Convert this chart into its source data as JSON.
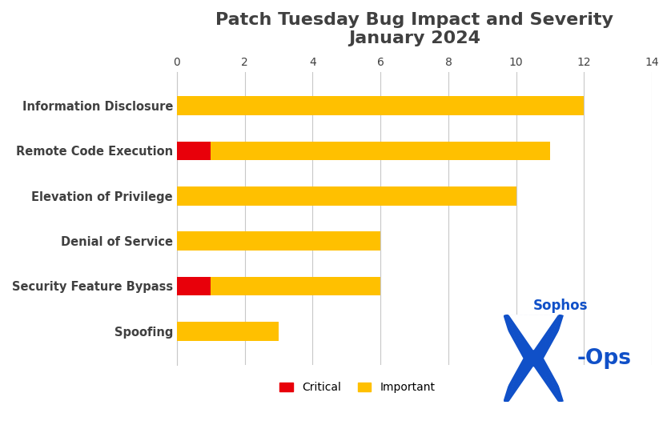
{
  "title_line1": "Patch Tuesday Bug Impact and Severity",
  "title_line2": "January 2024",
  "categories": [
    "Information Disclosure",
    "Remote Code Execution",
    "Elevation of Privilege",
    "Denial of Service",
    "Security Feature Bypass",
    "Spoofing"
  ],
  "critical_values": [
    0,
    1,
    0,
    0,
    1,
    0
  ],
  "important_values": [
    12,
    10,
    10,
    6,
    5,
    3
  ],
  "critical_color": "#E8000A",
  "important_color": "#FFC000",
  "xlim": [
    0,
    14
  ],
  "xticks": [
    0,
    2,
    4,
    6,
    8,
    10,
    12,
    14
  ],
  "background_color": "#FFFFFF",
  "title_color": "#404040",
  "label_color": "#404040",
  "grid_color": "#C8C8C8",
  "bar_height": 0.42,
  "title_fontsize": 16,
  "label_fontsize": 10.5,
  "tick_fontsize": 10,
  "legend_fontsize": 10,
  "sophos_color": "#1050C8",
  "sophos_text": "Sophos",
  "xops_text": "X-Ops"
}
